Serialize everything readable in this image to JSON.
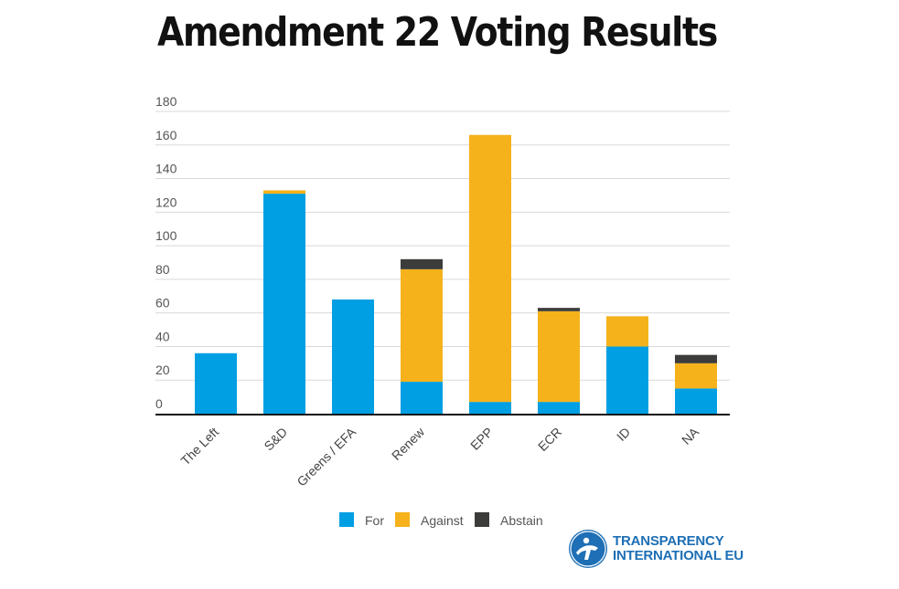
{
  "title": "Amendment 22 Voting Results",
  "chart_data": {
    "type": "bar",
    "stacked": true,
    "categories": [
      "The Left",
      "S&D",
      "Greens / EFA",
      "Renew",
      "EPP",
      "ECR",
      "ID",
      "NA"
    ],
    "series": [
      {
        "name": "For",
        "color": "#009fe3",
        "values": [
          36,
          131,
          68,
          19,
          7,
          7,
          40,
          15
        ]
      },
      {
        "name": "Against",
        "color": "#f5b21b",
        "values": [
          0,
          2,
          0,
          67,
          159,
          54,
          18,
          15
        ]
      },
      {
        "name": "Abstain",
        "color": "#3c3c3b",
        "values": [
          0,
          0,
          0,
          6,
          0,
          2,
          0,
          5
        ]
      }
    ],
    "ylim": [
      0,
      180
    ],
    "yticks": [
      0,
      20,
      40,
      60,
      80,
      100,
      120,
      140,
      160,
      180
    ],
    "grid": true,
    "legend_position": "bottom"
  },
  "logo": {
    "line1": "TRANSPARENCY",
    "line2": "INTERNATIONAL EU",
    "color": "#1e6fb5"
  }
}
